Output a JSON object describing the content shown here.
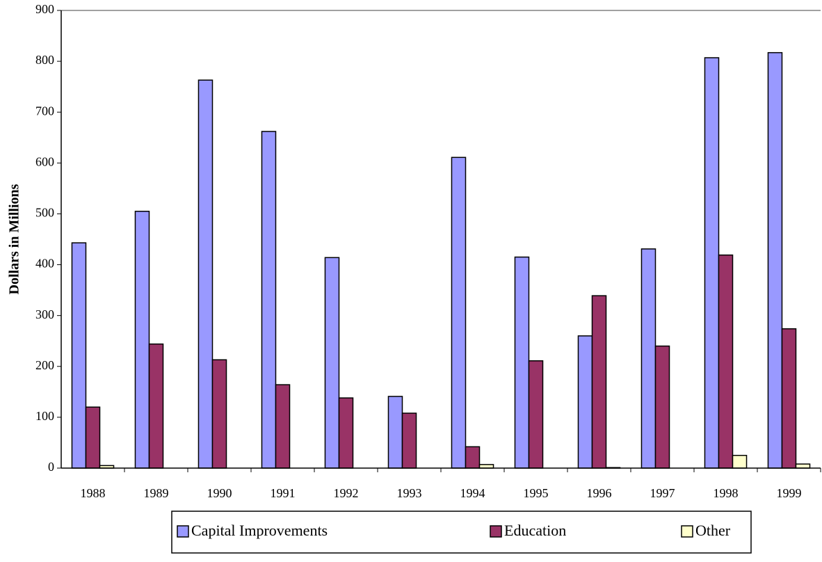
{
  "chart_data": {
    "type": "bar",
    "y_axis_label": "Dollars in Millions",
    "categories": [
      "1988",
      "1989",
      "1990",
      "1991",
      "1992",
      "1993",
      "1994",
      "1995",
      "1996",
      "1997",
      "1998",
      "1999"
    ],
    "series": [
      {
        "name": "Capital Improvements",
        "color": "#9999ff",
        "values": [
          443,
          505,
          763,
          662,
          414,
          141,
          611,
          415,
          260,
          431,
          807,
          817
        ]
      },
      {
        "name": "Education",
        "color": "#993366",
        "values": [
          120,
          244,
          213,
          164,
          138,
          108,
          42,
          211,
          339,
          240,
          419,
          274
        ]
      },
      {
        "name": "Other",
        "color": "#ffffcc",
        "values": [
          5,
          0,
          0,
          0,
          0,
          0,
          7,
          0,
          1,
          0,
          25,
          8
        ]
      }
    ],
    "ylim": [
      0,
      900
    ],
    "yticks": [
      0,
      100,
      200,
      300,
      400,
      500,
      600,
      700,
      800,
      900
    ]
  }
}
